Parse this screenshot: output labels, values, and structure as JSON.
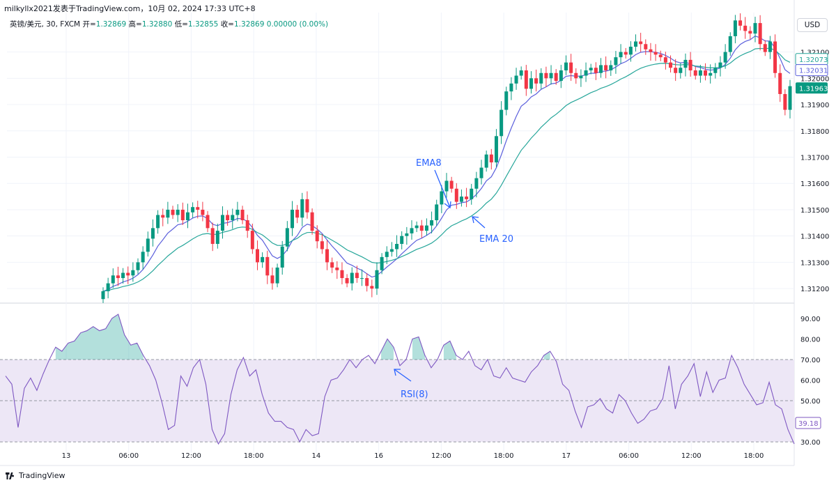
{
  "header": {
    "attribution": "milkyllx2021发表于TradingView.com，10月 02, 2024 17:33 UTC+8",
    "symbol": "英镑/美元, 30, FXCM",
    "open_label": "开=",
    "open": "1.32869",
    "high_label": "高=",
    "high": "1.32880",
    "low_label": "低=",
    "low": "1.32855",
    "close_label": "收=",
    "close": "1.32869",
    "change": "0.00000 (0.00%)",
    "currency": "USD"
  },
  "footer": {
    "brand": "TradingView"
  },
  "colors": {
    "up": "#089981",
    "down": "#f23645",
    "ema8": "#5b5fdc",
    "ema20": "#26a69a",
    "rsi": "#7e57c2",
    "rsi_band": "#ede7f6",
    "annotation": "#2962ff"
  },
  "chart_data": [
    {
      "type": "candlestick",
      "title": "英镑/美元, 30, FXCM",
      "x_tick_labels": [
        "13",
        "06:00",
        "12:00",
        "18:00",
        "14",
        "16",
        "12:00",
        "18:00",
        "17",
        "06:00",
        "12:00",
        "18:00"
      ],
      "y_tick_labels": [
        "1.32100",
        "1.32000",
        "1.31900",
        "1.31800",
        "1.31700",
        "1.31600",
        "1.31500",
        "1.31400",
        "1.31300",
        "1.31200"
      ],
      "ylim": [
        1.3115,
        1.3225
      ],
      "price_tags": [
        {
          "value": "1.32073",
          "color": "#26a69a",
          "boxed": false
        },
        {
          "value": "1.32031",
          "color": "#5b5fdc",
          "boxed": false
        },
        {
          "value": "1.31963",
          "color": "#089981",
          "boxed": true
        }
      ],
      "annotations": [
        "EMA8",
        "EMA 20"
      ],
      "series": [
        {
          "name": "EMA8",
          "kind": "ema",
          "period": 8
        },
        {
          "name": "EMA 20",
          "kind": "ema",
          "period": 20
        }
      ],
      "close": [
        1.3119,
        1.3122,
        1.3125,
        1.3124,
        1.3126,
        1.3125,
        1.3127,
        1.313,
        1.3134,
        1.3139,
        1.3143,
        1.3148,
        1.3147,
        1.315,
        1.3148,
        1.315,
        1.3146,
        1.3149,
        1.3151,
        1.315,
        1.3148,
        1.3143,
        1.3137,
        1.3142,
        1.3148,
        1.3146,
        1.3148,
        1.315,
        1.3146,
        1.3142,
        1.3135,
        1.313,
        1.3132,
        1.3125,
        1.3122,
        1.3128,
        1.3136,
        1.3143,
        1.315,
        1.3147,
        1.3154,
        1.3149,
        1.3142,
        1.3138,
        1.3135,
        1.313,
        1.3128,
        1.3127,
        1.3124,
        1.3122,
        1.3126,
        1.3124,
        1.3124,
        1.3121,
        1.312,
        1.3127,
        1.3132,
        1.3134,
        1.3135,
        1.3137,
        1.314,
        1.3141,
        1.3143,
        1.3144,
        1.3142,
        1.3144,
        1.3146,
        1.3152,
        1.3157,
        1.3161,
        1.3158,
        1.3153,
        1.3155,
        1.3154,
        1.3158,
        1.3162,
        1.3166,
        1.3171,
        1.3168,
        1.3178,
        1.3188,
        1.3195,
        1.3198,
        1.3201,
        1.3203,
        1.3196,
        1.32,
        1.3198,
        1.3202,
        1.32,
        1.3202,
        1.3199,
        1.3203,
        1.3206,
        1.3202,
        1.32,
        1.3201,
        1.3203,
        1.3204,
        1.3202,
        1.3205,
        1.3203,
        1.3205,
        1.3208,
        1.321,
        1.3209,
        1.3212,
        1.3214,
        1.3213,
        1.3211,
        1.321,
        1.3209,
        1.3208,
        1.3206,
        1.3204,
        1.3202,
        1.3204,
        1.3207,
        1.3203,
        1.3201,
        1.3203,
        1.3201,
        1.3202,
        1.3204,
        1.3206,
        1.321,
        1.3216,
        1.3222,
        1.322,
        1.3218,
        1.3217,
        1.3221,
        1.3213,
        1.321,
        1.3214,
        1.3202,
        1.3194,
        1.3188,
        1.3197
      ],
      "rsi": {
        "name": "RSI(8)",
        "period": 8,
        "y_tick_labels": [
          "90.00",
          "80.00",
          "70.00",
          "60.00",
          "50.00",
          "40.00",
          "30.00"
        ],
        "ylim": [
          28,
          93
        ],
        "upper": 70,
        "middle": 50,
        "lower": 30,
        "last_value": "39.18",
        "values": [
          62,
          58,
          37,
          56,
          61,
          55,
          63,
          70,
          76,
          74,
          78,
          79,
          83,
          84,
          86,
          84,
          85,
          90,
          92,
          82,
          77,
          78,
          72,
          67,
          60,
          49,
          36,
          38,
          62,
          57,
          66,
          70,
          58,
          36,
          29,
          34,
          53,
          65,
          71,
          62,
          65,
          53,
          44,
          40,
          40,
          37,
          36,
          30,
          36,
          33,
          34,
          52,
          60,
          61,
          65,
          70,
          66,
          70,
          72,
          68,
          74,
          80,
          76,
          67,
          70,
          80,
          81,
          72,
          66,
          70,
          77,
          79,
          72,
          70,
          74,
          67,
          65,
          70,
          62,
          61,
          66,
          61,
          60,
          59,
          64,
          67,
          72,
          74,
          69,
          58,
          55,
          45,
          37,
          47,
          48,
          51,
          46,
          44,
          53,
          50,
          44,
          39,
          41,
          45,
          46,
          51,
          67,
          46,
          58,
          62,
          68,
          52,
          64,
          54,
          60,
          61,
          72,
          66,
          58,
          53,
          48,
          49,
          59,
          48,
          46,
          36,
          29
        ]
      }
    }
  ]
}
